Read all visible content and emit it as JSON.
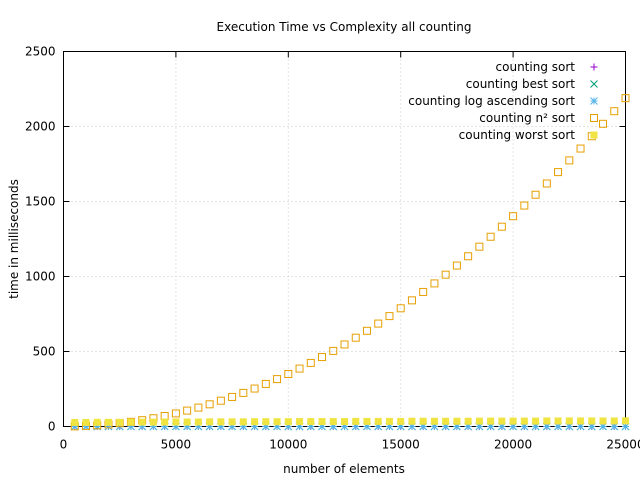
{
  "chart_data": {
    "type": "scatter",
    "title": "Execution Time vs Complexity all counting",
    "xlabel": "number of elements",
    "ylabel": "time in milliseconds",
    "xlim": [
      0,
      25000
    ],
    "ylim": [
      0,
      2500
    ],
    "xticks": [
      0,
      5000,
      10000,
      15000,
      20000,
      25000
    ],
    "yticks": [
      0,
      500,
      1000,
      1500,
      2000,
      2500
    ],
    "grid": true,
    "legend_position": "top-right",
    "x": [
      500,
      1000,
      1500,
      2000,
      2500,
      3000,
      3500,
      4000,
      4500,
      5000,
      5500,
      6000,
      6500,
      7000,
      7500,
      8000,
      8500,
      9000,
      9500,
      10000,
      10500,
      11000,
      11500,
      12000,
      12500,
      13000,
      13500,
      14000,
      14500,
      15000,
      15500,
      16000,
      16500,
      17000,
      17500,
      18000,
      18500,
      19000,
      19500,
      20000,
      20500,
      21000,
      21500,
      22000,
      22500,
      23000,
      23500,
      24000,
      24500,
      25000
    ],
    "series": [
      {
        "name": "counting sort",
        "marker": "plus",
        "color": "#9400d3",
        "values": [
          0,
          0,
          0,
          0,
          0,
          0,
          0,
          0,
          0,
          0,
          0,
          0,
          0,
          0,
          0,
          0,
          0,
          0,
          0,
          0,
          0,
          0,
          0,
          0,
          0,
          0,
          0,
          0,
          0,
          0,
          0,
          0,
          0,
          0,
          0,
          0,
          0,
          0,
          0,
          0,
          0,
          0,
          0,
          0,
          0,
          0,
          0,
          0,
          0,
          0
        ]
      },
      {
        "name": "counting best sort",
        "marker": "cross",
        "color": "#009e73",
        "values": [
          0,
          0,
          0,
          0,
          0,
          0,
          0,
          0,
          0,
          0,
          0,
          0,
          0,
          0,
          0,
          0,
          0,
          0,
          0,
          0,
          0,
          0,
          0,
          0,
          0,
          0,
          0,
          0,
          0,
          0,
          0,
          0,
          0,
          0,
          0,
          0,
          0,
          0,
          0,
          0,
          0,
          0,
          0,
          0,
          0,
          0,
          0,
          0,
          0,
          0
        ]
      },
      {
        "name": "counting log ascending sort",
        "marker": "star",
        "color": "#56b4e9",
        "values": [
          0,
          0,
          0,
          0,
          0,
          0,
          0,
          0,
          0,
          0,
          0,
          0,
          0,
          0,
          0,
          0,
          0,
          0,
          0,
          0,
          0,
          0,
          0,
          0,
          0,
          0,
          0,
          0,
          0,
          0,
          0,
          0,
          0,
          0,
          0,
          0,
          0,
          0,
          0,
          0,
          0,
          0,
          0,
          0,
          0,
          0,
          0,
          0,
          0,
          0
        ]
      },
      {
        "name": "counting n² sort",
        "marker": "open-square",
        "color": "#e69f00",
        "values": [
          1,
          4,
          8,
          14,
          22,
          31,
          42,
          55,
          70,
          87,
          106,
          126,
          148,
          172,
          197,
          224,
          253,
          284,
          316,
          350,
          386,
          424,
          463,
          504,
          547,
          592,
          638,
          686,
          736,
          788,
          841,
          897,
          954,
          1012,
          1073,
          1135,
          1199,
          1265,
          1332,
          1402,
          1473,
          1545,
          1620,
          1696,
          1774,
          1853,
          1935,
          2018,
          2102,
          2189
        ]
      },
      {
        "name": "counting worst sort",
        "marker": "filled-square",
        "color": "#f0e442",
        "values": [
          27,
          27,
          28,
          28,
          28,
          29,
          29,
          29,
          30,
          30,
          30,
          30,
          31,
          31,
          31,
          31,
          32,
          32,
          32,
          32,
          33,
          33,
          33,
          33,
          33,
          34,
          34,
          34,
          34,
          34,
          35,
          35,
          35,
          35,
          35,
          35,
          36,
          36,
          36,
          36,
          36,
          36,
          37,
          37,
          37,
          37,
          37,
          37,
          37,
          38
        ]
      }
    ]
  }
}
